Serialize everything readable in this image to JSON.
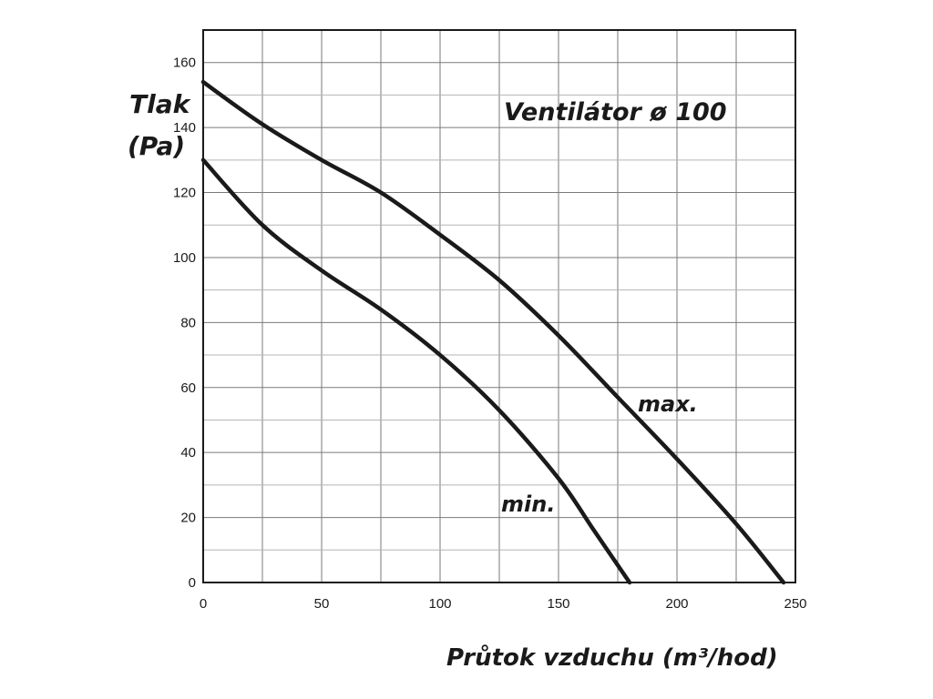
{
  "chart_data": {
    "type": "line",
    "title": "Ventilátor ø 100",
    "ylabel_line1": "Tlak",
    "ylabel_line2": "(Pa)",
    "xlabel": "Průtok vzduchu (m³/hod)",
    "xlim": [
      0,
      250
    ],
    "ylim": [
      0,
      170
    ],
    "x_ticks": [
      0,
      50,
      100,
      150,
      200,
      250
    ],
    "y_ticks": [
      0,
      20,
      40,
      60,
      80,
      100,
      120,
      140,
      160
    ],
    "grid": true,
    "series": [
      {
        "name": "max.",
        "x": [
          0,
          25,
          50,
          75,
          100,
          125,
          150,
          175,
          200,
          225,
          245
        ],
        "y": [
          154,
          141,
          130,
          120,
          107,
          93,
          76,
          57,
          38,
          18,
          0
        ]
      },
      {
        "name": "min.",
        "x": [
          0,
          25,
          50,
          75,
          100,
          125,
          150,
          165,
          180
        ],
        "y": [
          130,
          110,
          96,
          84,
          70,
          53,
          32,
          16,
          0
        ]
      }
    ]
  }
}
